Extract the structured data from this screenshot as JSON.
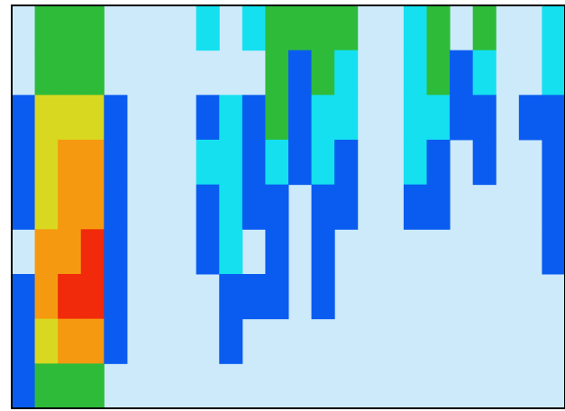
{
  "chart_data": {
    "type": "heatmap",
    "background": "#cdeafa",
    "levels": [
      1,
      2,
      3,
      4,
      5,
      6
    ],
    "colors": [
      "#0a5cf0",
      "#14e0f0",
      "#2fbb3a",
      "#d8d820",
      "#f59a10",
      "#f02a0a"
    ],
    "z": [
      [
        null,
        3,
        3,
        3,
        null,
        null,
        null,
        null,
        2,
        null,
        2,
        3,
        3,
        3,
        3,
        null,
        null,
        2,
        3,
        null,
        3,
        null,
        null,
        2
      ],
      [
        null,
        3,
        3,
        3,
        null,
        null,
        null,
        null,
        null,
        null,
        null,
        3,
        1,
        3,
        2,
        null,
        null,
        2,
        3,
        1,
        2,
        null,
        null,
        2
      ],
      [
        1,
        4,
        4,
        4,
        1,
        null,
        null,
        null,
        1,
        2,
        1,
        3,
        1,
        2,
        2,
        null,
        null,
        2,
        2,
        1,
        1,
        null,
        1,
        1
      ],
      [
        1,
        4,
        5,
        5,
        1,
        null,
        null,
        null,
        2,
        2,
        1,
        2,
        1,
        2,
        1,
        null,
        null,
        2,
        1,
        null,
        1,
        null,
        null,
        1
      ],
      [
        1,
        4,
        5,
        5,
        1,
        null,
        null,
        null,
        1,
        2,
        1,
        1,
        null,
        1,
        1,
        null,
        null,
        1,
        1,
        null,
        null,
        null,
        null,
        1
      ],
      [
        null,
        5,
        5,
        6,
        1,
        null,
        null,
        null,
        1,
        2,
        null,
        1,
        null,
        1,
        null,
        null,
        null,
        null,
        null,
        null,
        null,
        null,
        null,
        1
      ],
      [
        1,
        5,
        6,
        6,
        1,
        null,
        null,
        null,
        null,
        1,
        1,
        1,
        null,
        1,
        null,
        null,
        null,
        null,
        null,
        null,
        null,
        null,
        null,
        null
      ],
      [
        1,
        4,
        5,
        5,
        1,
        null,
        null,
        null,
        null,
        1,
        null,
        null,
        null,
        null,
        null,
        null,
        null,
        null,
        null,
        null,
        null,
        null,
        null,
        null
      ],
      [
        1,
        3,
        3,
        3,
        null,
        null,
        null,
        null,
        null,
        null,
        null,
        null,
        null,
        null,
        null,
        null,
        null,
        null,
        null,
        null,
        null,
        null,
        null,
        null
      ]
    ]
  }
}
